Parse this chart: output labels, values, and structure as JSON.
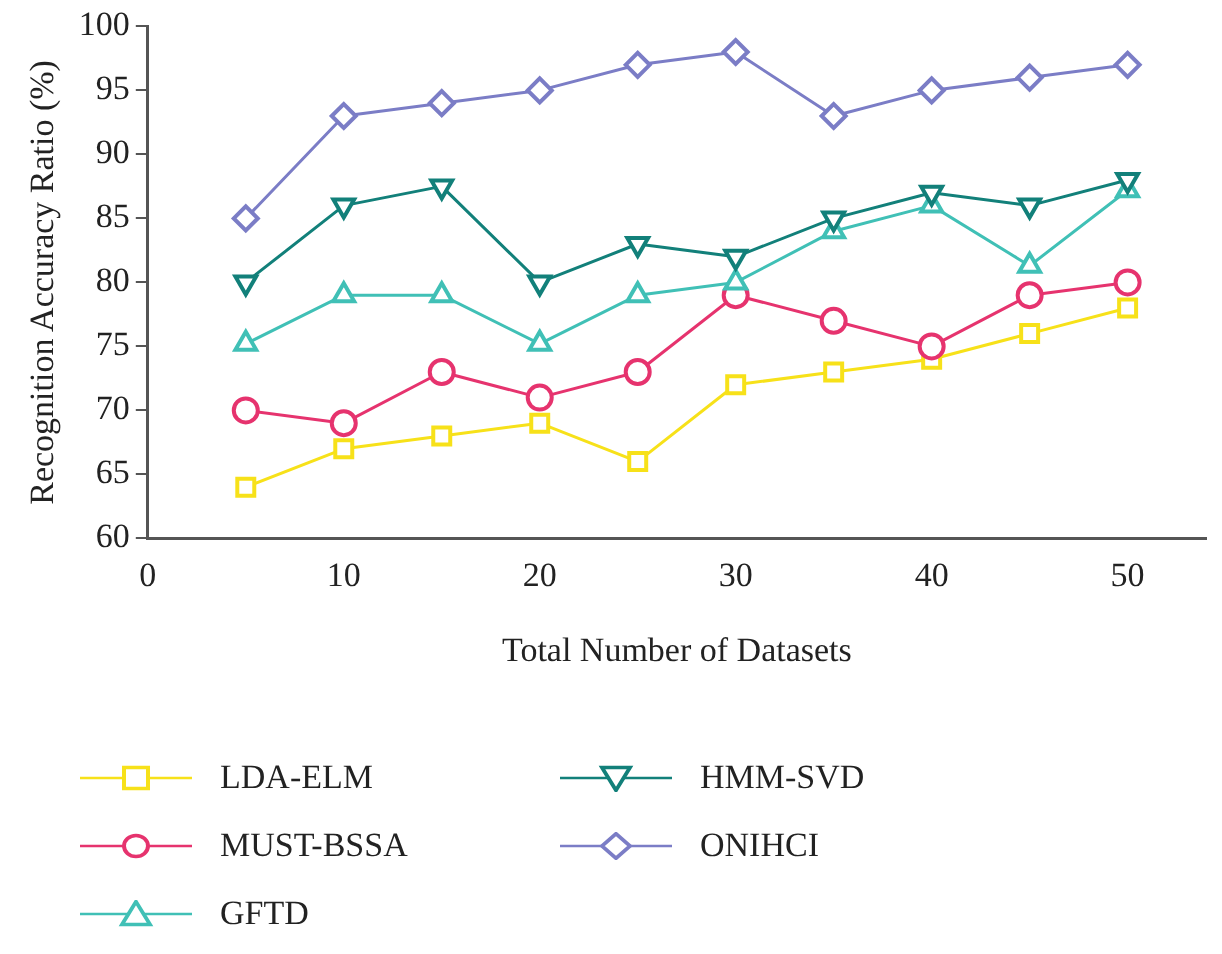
{
  "chart_data": {
    "type": "line",
    "xlabel": "Total Number of Datasets",
    "ylabel": "Recognition Accuracy Ratio (%)",
    "x": [
      5,
      10,
      15,
      20,
      25,
      30,
      35,
      40,
      45,
      50
    ],
    "xlim": [
      0,
      54
    ],
    "xticks": [
      0,
      10,
      20,
      30,
      40,
      50
    ],
    "ylim": [
      60,
      100
    ],
    "yticks": [
      60,
      65,
      70,
      75,
      80,
      85,
      90,
      95,
      100
    ],
    "grid": false,
    "legend": "bottom",
    "line_style": "solid",
    "series": [
      {
        "name": "LDA-ELM",
        "color": "#f7e119",
        "marker": "square",
        "values": [
          64,
          67,
          68,
          69,
          66,
          72,
          73,
          74,
          76,
          78
        ]
      },
      {
        "name": "MUST-BSSA",
        "color": "#e6336e",
        "marker": "circle",
        "values": [
          70,
          69,
          73,
          71,
          73,
          79,
          77,
          75,
          79,
          80
        ]
      },
      {
        "name": "GFTD",
        "color": "#40c0b6",
        "marker": "triangle",
        "values": [
          75.2,
          79,
          79,
          75.2,
          79,
          80,
          84,
          86,
          81.3,
          87.2
        ]
      },
      {
        "name": "HMM-SVD",
        "color": "#12807a",
        "marker": "triangle-down",
        "values": [
          80,
          86,
          87.5,
          80,
          83,
          82,
          85,
          87,
          86,
          88
        ]
      },
      {
        "name": "ONIHCI",
        "color": "#7b7dc6",
        "marker": "diamond",
        "values": [
          85,
          93,
          94,
          95,
          97,
          98,
          93,
          95,
          96,
          97
        ]
      }
    ]
  }
}
